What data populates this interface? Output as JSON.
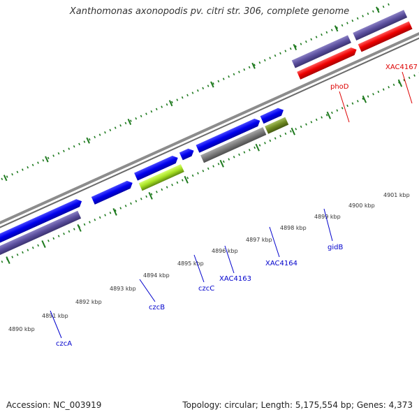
{
  "title": "Xanthomonas axonopodis pv. citri str. 306, complete genome",
  "footer": {
    "accession": "Accession: NC_003919",
    "summary": "Topology: circular; Length: 5,175,554 bp; Genes: 4,373"
  },
  "colors": {
    "backbone": "#8c8c8c",
    "tick": "#1e7a1e",
    "forward_gene": "#0000ee",
    "reverse_gene": "#5b4f9e",
    "highlight_gene": "#ee0000",
    "label_blue": "#0000cc",
    "label_red": "#dd0000"
  },
  "scale": {
    "unit": "kbp",
    "ticks": [
      {
        "label": "4890 kbp"
      },
      {
        "label": "4891 kbp"
      },
      {
        "label": "4892 kbp"
      },
      {
        "label": "4893 kbp"
      },
      {
        "label": "4894 kbp"
      },
      {
        "label": "4895 kbp"
      },
      {
        "label": "4896 kbp"
      },
      {
        "label": "4897 kbp"
      },
      {
        "label": "4898 kbp"
      },
      {
        "label": "4899 kbp"
      },
      {
        "label": "4900 kbp"
      },
      {
        "label": "4901 kbp"
      }
    ]
  },
  "genes": [
    {
      "label": "czcA",
      "color": "#0000cc"
    },
    {
      "label": "czcB",
      "color": "#0000cc"
    },
    {
      "label": "czcC",
      "color": "#0000cc"
    },
    {
      "label": "XAC4163",
      "color": "#0000cc"
    },
    {
      "label": "XAC4164",
      "color": "#0000cc"
    },
    {
      "label": "gidB",
      "color": "#0000cc"
    },
    {
      "label": "phoD",
      "color": "#dd0000"
    },
    {
      "label": "XAC4167",
      "color": "#dd0000"
    }
  ]
}
